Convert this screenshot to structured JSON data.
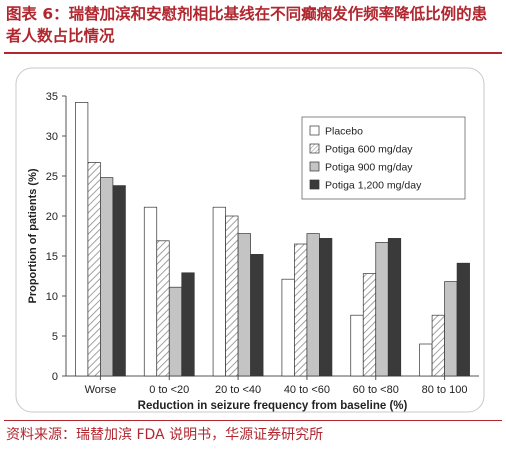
{
  "header": {
    "figure_title": "图表 6：瑞替加滨和安慰剂相比基线在不同癫痫发作频率降低比例的患者人数占比情况"
  },
  "footer": {
    "source": "资料来源：瑞替加滨 FDA 说明书，华源证券研究所"
  },
  "chart_data": {
    "type": "bar",
    "xlabel": "Reduction in seizure frequency from baseline (%)",
    "ylabel": "Proportion of patients (%)",
    "ylim": [
      0,
      35
    ],
    "yticks": [
      0,
      5,
      10,
      15,
      20,
      25,
      30,
      35
    ],
    "grid": false,
    "legend_position": "top-right",
    "categories": [
      "Worse",
      "0 to <20",
      "20 to <40",
      "40 to <60",
      "60 to <80",
      "80 to 100"
    ],
    "series": [
      {
        "name": "Placebo",
        "fill": "white",
        "values": [
          34.2,
          21.1,
          21.1,
          12.1,
          7.6,
          4.0
        ]
      },
      {
        "name": "Potiga 600 mg/day",
        "fill": "hatch",
        "values": [
          26.7,
          16.9,
          20.0,
          16.5,
          12.8,
          7.6
        ]
      },
      {
        "name": "Potiga 900 mg/day",
        "fill": "lightgray",
        "values": [
          24.8,
          11.1,
          17.8,
          17.8,
          16.7,
          11.8
        ]
      },
      {
        "name": "Potiga 1,200 mg/day",
        "fill": "dark",
        "values": [
          23.8,
          12.9,
          15.2,
          17.2,
          17.2,
          14.1
        ]
      }
    ]
  },
  "colors": {
    "accent": "#b2272f",
    "placebo": "#ffffff",
    "hatch_line": "#8a8a8a",
    "lightgray": "#c4c4c4",
    "dark": "#3a3a3a",
    "axis": "#555555"
  }
}
